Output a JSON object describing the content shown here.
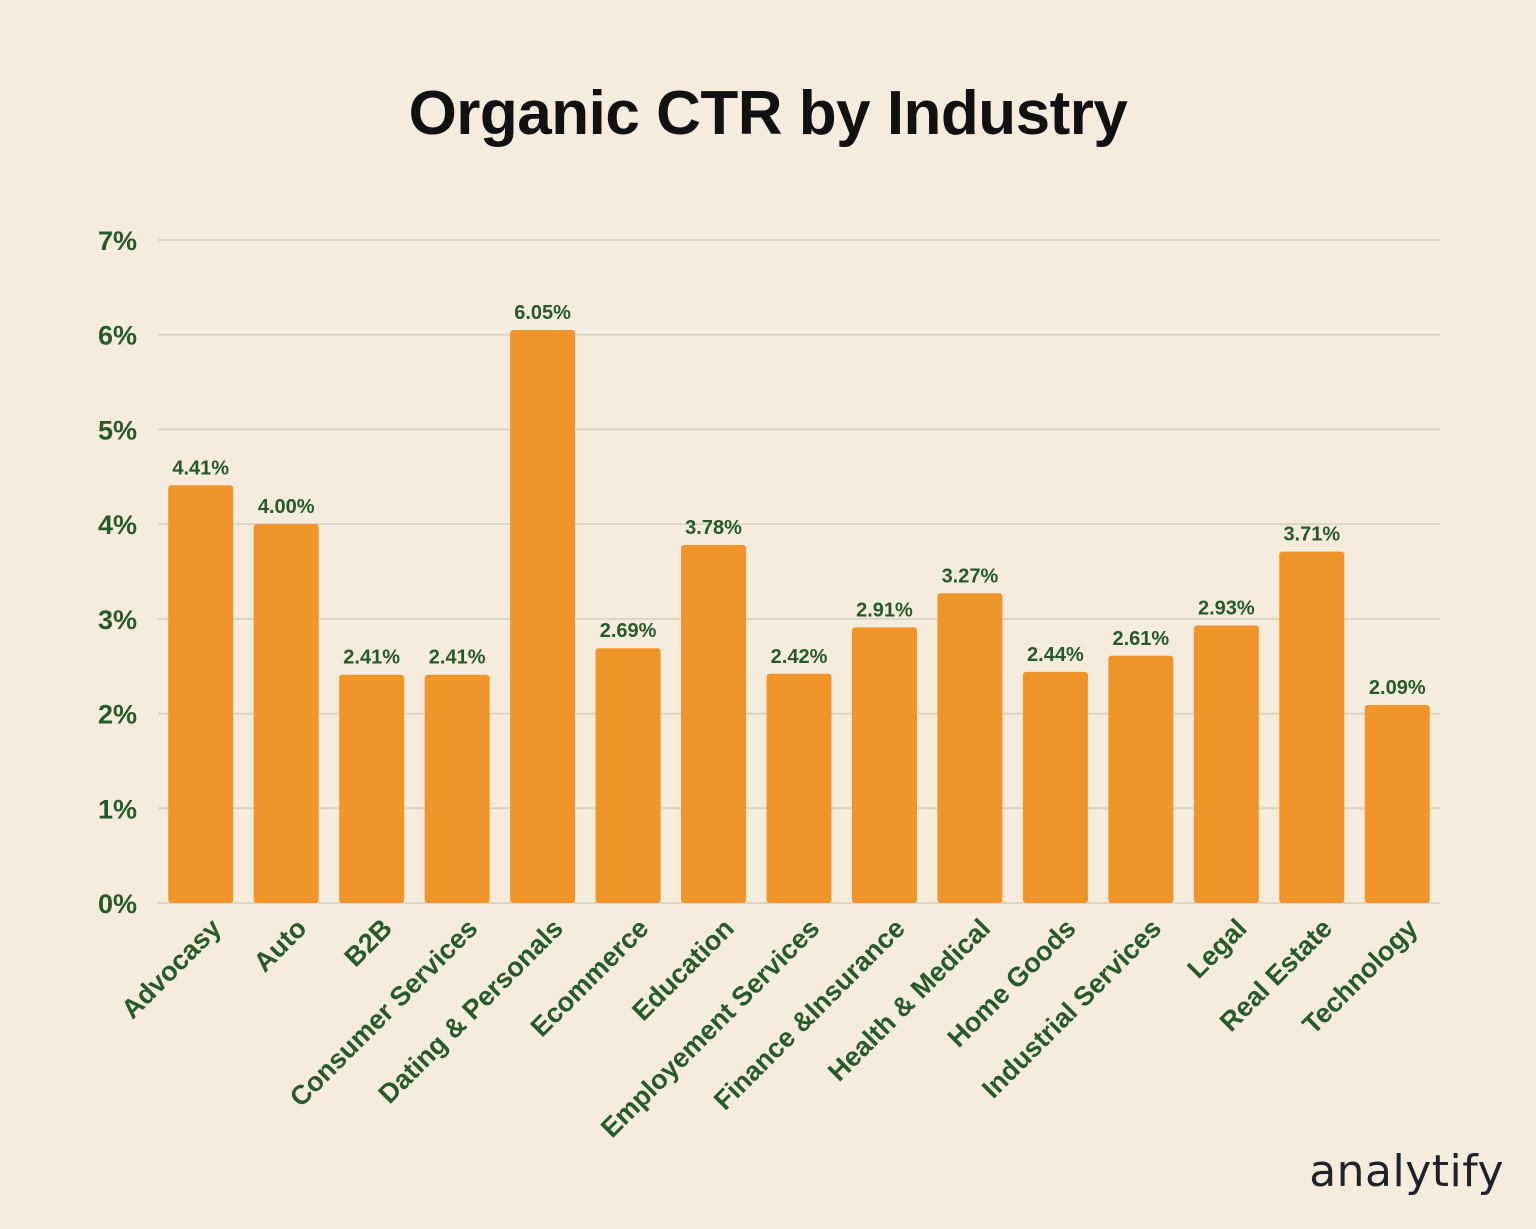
{
  "chart_data": {
    "type": "bar",
    "title": "Organic CTR by Industry",
    "xlabel": "",
    "ylabel": "",
    "ylim": [
      0,
      7
    ],
    "yticks": [
      "0%",
      "1%",
      "2%",
      "3%",
      "4%",
      "5%",
      "6%",
      "7%"
    ],
    "grid": true,
    "categories": [
      "Advocasy",
      "Auto",
      "B2B",
      "Consumer Services",
      "Dating & Personals",
      "Ecommerce",
      "Education",
      "Employement Services",
      "Finance &Insurance",
      "Health & Medical",
      "Home Goods",
      "Industrial Services",
      "Legal",
      "Real Estate",
      "Technology"
    ],
    "values": [
      4.41,
      4.0,
      2.41,
      2.41,
      6.05,
      2.69,
      3.78,
      2.42,
      2.91,
      3.27,
      2.44,
      2.61,
      2.93,
      3.71,
      2.09
    ],
    "data_labels": [
      "4.41%",
      "4.00%",
      "2.41%",
      "2.41%",
      "6.05%",
      "2.69%",
      "3.78%",
      "2.42%",
      "2.91%",
      "3.27%",
      "2.44%",
      "2.61%",
      "2.93%",
      "3.71%",
      "2.09%"
    ],
    "colors": {
      "bar": "#f0952a",
      "text": "#255a2a",
      "grid": "#ddd5c4",
      "background": "#f5ecdd"
    }
  },
  "brand": {
    "logo": "analytify"
  }
}
